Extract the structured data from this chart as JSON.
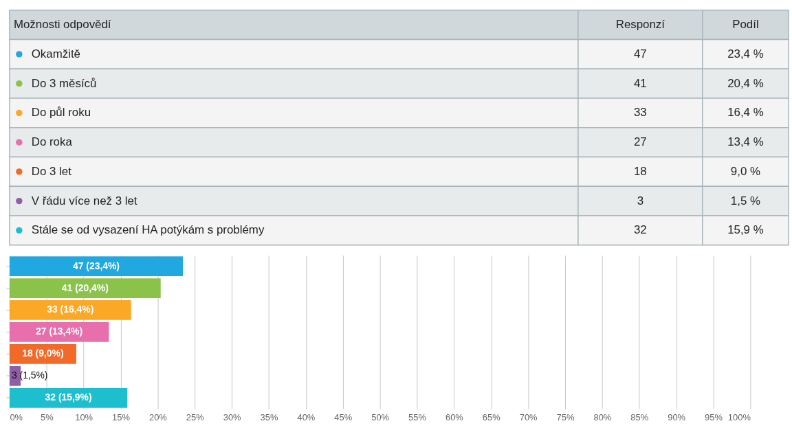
{
  "chart_data": [
    {
      "type": "other",
      "categories": [
        "Okamžitě",
        "Do 3 měsíců",
        "Do půl roku",
        "Do roka",
        "Do 3 let",
        "V řádu více než 3 let",
        "Stále se od vysazení HA potýkám s problémy"
      ],
      "colors": [
        "#22a8e0",
        "#8bc34a",
        "#fba826",
        "#e76fac",
        "#f26a2a",
        "#8f5ea6",
        "#1dbfcf"
      ],
      "annotations": [
        "Možnosti odpovědí",
        "Responzí",
        "Podíl",
        "47",
        "23,4 %",
        "41",
        "20,4 %",
        "33",
        "16,4 %",
        "27",
        "13,4 %",
        "18",
        "9,0 %",
        "3",
        "1,5 %",
        "32",
        "15,9 %"
      ]
    },
    {
      "type": "bar",
      "orientation": "horizontal",
      "categories": [
        null,
        null,
        null,
        null,
        null,
        null,
        null
      ],
      "values": [
        23.4,
        20.4,
        16.4,
        13.4,
        9.0,
        1.5,
        15.9
      ],
      "colors": [
        "#22a8e0",
        "#8bc34a",
        "#fba826",
        "#e76fac",
        "#f26a2a",
        "#8f5ea6",
        "#1dbfcf"
      ],
      "value_labels": [
        "47 (23,4%)",
        "41 (20,4%)",
        "33 (16,4%)",
        "27 (13,4%)",
        "18 (9,0%)",
        "3 (1,5%)",
        "32 (15,9%)"
      ],
      "xlim": [
        0,
        100
      ],
      "xticks": [
        {
          "value": 0,
          "label": "0%"
        },
        {
          "value": 5,
          "label": "5%"
        },
        {
          "value": 10,
          "label": "10%"
        },
        {
          "value": 15,
          "label": "15%"
        },
        {
          "value": 20,
          "label": "20%"
        },
        {
          "value": 25,
          "label": "25%"
        },
        {
          "value": 30,
          "label": "30%"
        },
        {
          "value": 35,
          "label": "35%"
        },
        {
          "value": 40,
          "label": "40%"
        },
        {
          "value": 45,
          "label": "45%"
        },
        {
          "value": 50,
          "label": "50%"
        },
        {
          "value": 55,
          "label": "55%"
        },
        {
          "value": 60,
          "label": "60%"
        },
        {
          "value": 65,
          "label": "65%"
        },
        {
          "value": 70,
          "label": "70%"
        },
        {
          "value": 75,
          "label": "75%"
        },
        {
          "value": 80,
          "label": "80%"
        },
        {
          "value": 85,
          "label": "85%"
        },
        {
          "value": 90,
          "label": "90%"
        },
        {
          "value": 95,
          "label": "95%"
        },
        {
          "value": 100,
          "label": "100%"
        }
      ],
      "grid": "x"
    }
  ]
}
